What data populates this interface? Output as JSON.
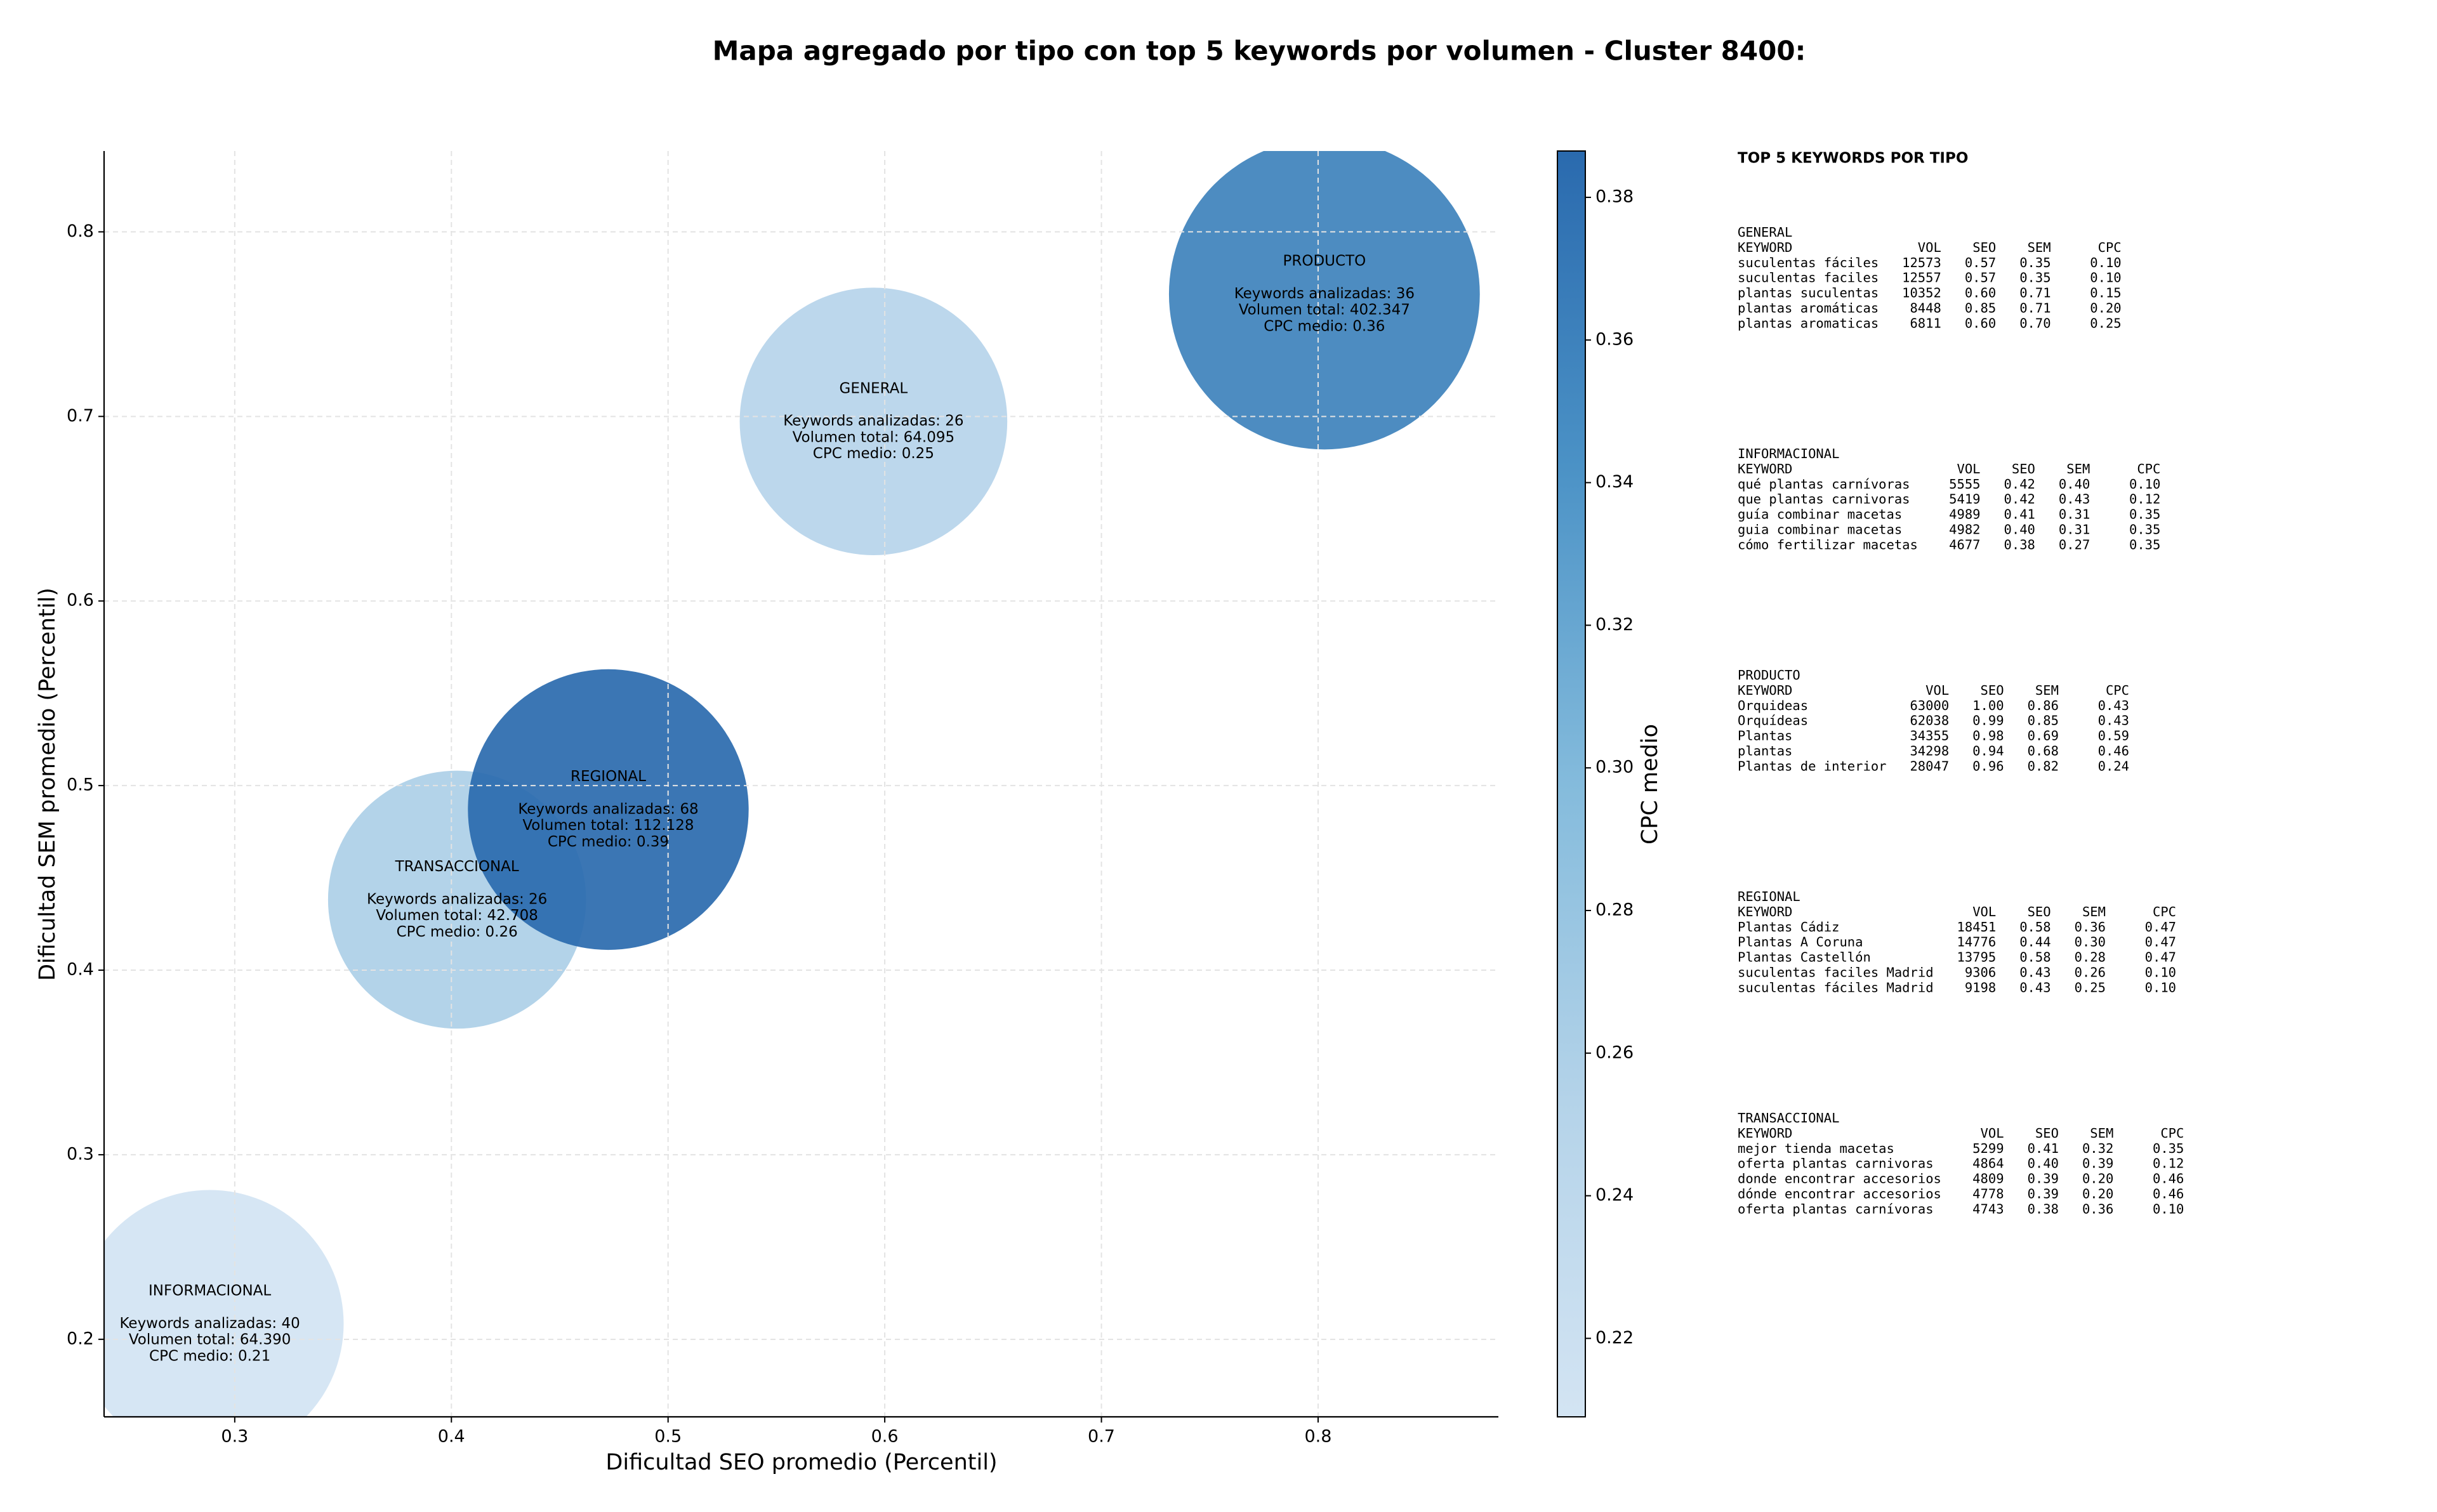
{
  "chart_data": {
    "type": "bubble",
    "title": "Mapa agregado por tipo con top 5 keywords por volumen - Cluster 8400:",
    "xlabel": "Dificultad SEO promedio (Percentil)",
    "ylabel": "Dificultad SEM promedio (Percentil)",
    "xlim": [
      0.2397,
      0.8832
    ],
    "ylim": [
      0.158,
      0.8438
    ],
    "xticks": [
      0.3,
      0.4,
      0.5,
      0.6,
      0.7,
      0.8
    ],
    "yticks": [
      0.2,
      0.3,
      0.4,
      0.5,
      0.6,
      0.7,
      0.8
    ],
    "grid": true,
    "colorbar": {
      "label": "CPC medio",
      "clim": [
        0.209,
        0.3865
      ],
      "ticks": [
        0.22,
        0.24,
        0.26,
        0.28,
        0.3,
        0.32,
        0.34,
        0.36,
        0.38
      ],
      "colormap": [
        "#d3e4f3",
        "#b4d3e9",
        "#84bbdc",
        "#4b92c6",
        "#2a6aae"
      ]
    },
    "points": [
      {
        "name": "INFORMACIONAL",
        "x": 0.2885,
        "y": 0.2084,
        "volume": 64390,
        "cpc": 0.21,
        "details": [
          "Keywords analizadas: 40",
          "Volumen total: 64.390",
          "CPC medio: 0.21"
        ]
      },
      {
        "name": "TRANSACCIONAL",
        "x": 0.4026,
        "y": 0.4382,
        "volume": 42708,
        "cpc": 0.26,
        "details": [
          "Keywords analizadas: 26",
          "Volumen total: 42.708",
          "CPC medio: 0.26"
        ]
      },
      {
        "name": "REGIONAL",
        "x": 0.4724,
        "y": 0.487,
        "volume": 112128,
        "cpc": 0.39,
        "details": [
          "Keywords analizadas: 68",
          "Volumen total: 112.128",
          "CPC medio: 0.39"
        ]
      },
      {
        "name": "GENERAL",
        "x": 0.5948,
        "y": 0.6973,
        "volume": 64095,
        "cpc": 0.25,
        "details": [
          "Keywords analizadas: 26",
          "Volumen total: 64.095",
          "CPC medio: 0.25"
        ]
      },
      {
        "name": "PRODUCTO",
        "x": 0.8029,
        "y": 0.7663,
        "volume": 402347,
        "cpc": 0.36,
        "details": [
          "Keywords analizadas: 36",
          "Volumen total: 402.347",
          "CPC medio: 0.36"
        ]
      }
    ]
  },
  "side_panel": {
    "title": "TOP 5 KEYWORDS POR TIPO",
    "header": [
      "KEYWORD",
      "VOL",
      "SEO",
      "SEM",
      "CPC"
    ],
    "sections": [
      {
        "name": "GENERAL",
        "rows": [
          [
            "suculentas fáciles",
            "12573",
            "0.57",
            "0.35",
            "0.10"
          ],
          [
            "suculentas faciles",
            "12557",
            "0.57",
            "0.35",
            "0.10"
          ],
          [
            "plantas suculentas",
            "10352",
            "0.60",
            "0.71",
            "0.15"
          ],
          [
            "plantas aromáticas",
            "8448",
            "0.85",
            "0.71",
            "0.20"
          ],
          [
            "plantas aromaticas",
            "6811",
            "0.60",
            "0.70",
            "0.25"
          ]
        ]
      },
      {
        "name": "INFORMACIONAL",
        "rows": [
          [
            "qué plantas carnívoras",
            "5555",
            "0.42",
            "0.40",
            "0.10"
          ],
          [
            "que plantas carnivoras",
            "5419",
            "0.42",
            "0.43",
            "0.12"
          ],
          [
            "guía combinar macetas",
            "4989",
            "0.41",
            "0.31",
            "0.35"
          ],
          [
            "guia combinar macetas",
            "4982",
            "0.40",
            "0.31",
            "0.35"
          ],
          [
            "cómo fertilizar macetas",
            "4677",
            "0.38",
            "0.27",
            "0.35"
          ]
        ]
      },
      {
        "name": "PRODUCTO",
        "rows": [
          [
            "Orquideas",
            "63000",
            "1.00",
            "0.86",
            "0.43"
          ],
          [
            "Orquídeas",
            "62038",
            "0.99",
            "0.85",
            "0.43"
          ],
          [
            "Plantas",
            "34355",
            "0.98",
            "0.69",
            "0.59"
          ],
          [
            "plantas",
            "34298",
            "0.94",
            "0.68",
            "0.46"
          ],
          [
            "Plantas de interior",
            "28047",
            "0.96",
            "0.82",
            "0.24"
          ]
        ]
      },
      {
        "name": "REGIONAL",
        "rows": [
          [
            "Plantas Cádiz",
            "18451",
            "0.58",
            "0.36",
            "0.47"
          ],
          [
            "Plantas A Coruna",
            "14776",
            "0.44",
            "0.30",
            "0.47"
          ],
          [
            "Plantas Castellón",
            "13795",
            "0.58",
            "0.28",
            "0.47"
          ],
          [
            "suculentas faciles Madrid",
            "9306",
            "0.43",
            "0.26",
            "0.10"
          ],
          [
            "suculentas fáciles Madrid",
            "9198",
            "0.43",
            "0.25",
            "0.10"
          ]
        ]
      },
      {
        "name": "TRANSACCIONAL",
        "rows": [
          [
            "mejor tienda macetas",
            "5299",
            "0.41",
            "0.32",
            "0.35"
          ],
          [
            "oferta plantas carnivoras",
            "4864",
            "0.40",
            "0.39",
            "0.12"
          ],
          [
            "donde encontrar accesorios",
            "4809",
            "0.39",
            "0.20",
            "0.46"
          ],
          [
            "dónde encontrar accesorios",
            "4778",
            "0.39",
            "0.20",
            "0.46"
          ],
          [
            "oferta plantas carnívoras",
            "4743",
            "0.38",
            "0.36",
            "0.10"
          ]
        ]
      }
    ]
  }
}
